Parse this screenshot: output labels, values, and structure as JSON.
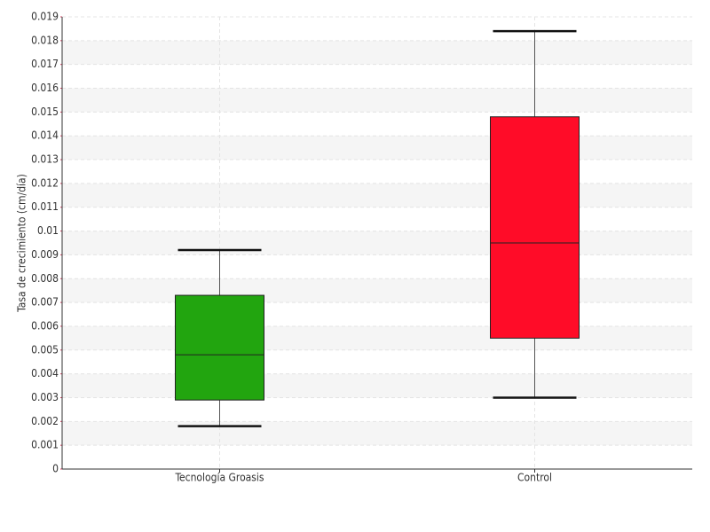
{
  "chart_data": {
    "type": "box",
    "y_label": "Tasa de crecimiento (cm/día)",
    "categories": [
      "Tecnología Groasis",
      "Control"
    ],
    "boxes": [
      {
        "min": 0.0018,
        "q1": 0.0029,
        "median": 0.0048,
        "q3": 0.0073,
        "max": 0.0092,
        "color": "#22a50f"
      },
      {
        "min": 0.003,
        "q1": 0.0055,
        "median": 0.0095,
        "q3": 0.0148,
        "max": 0.0184,
        "color": "#ff0c28"
      }
    ],
    "ylim": [
      0,
      0.019
    ],
    "yticks": [
      0,
      0.001,
      0.002,
      0.003,
      0.004,
      0.005,
      0.006,
      0.007,
      0.008,
      0.009,
      0.01,
      0.011,
      0.012,
      0.013,
      0.014,
      0.015,
      0.016,
      0.017,
      0.018,
      0.019
    ],
    "grid": true
  }
}
